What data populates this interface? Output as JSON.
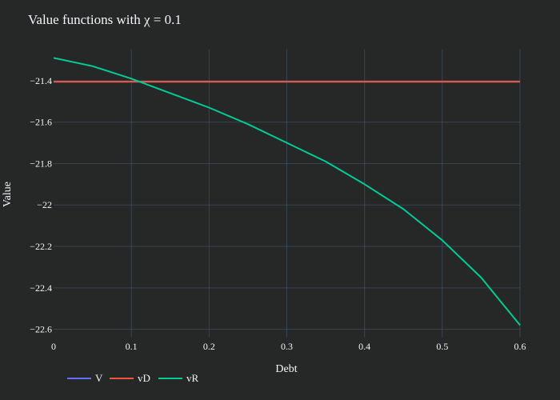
{
  "chart_data": {
    "type": "line",
    "title": "Value functions with χ = 0.1",
    "xlabel": "Debt",
    "ylabel": "Value",
    "xlim": [
      0,
      0.6
    ],
    "ylim": [
      -22.64,
      -21.25
    ],
    "x_ticks": [
      0,
      0.1,
      0.2,
      0.3,
      0.4,
      0.5,
      0.6
    ],
    "x_tick_labels": [
      "0",
      "0.1",
      "0.2",
      "0.3",
      "0.4",
      "0.5",
      "0.6"
    ],
    "y_ticks": [
      -21.4,
      -21.6,
      -21.8,
      -22,
      -22.2,
      -22.4,
      -22.6
    ],
    "y_tick_labels": [
      "−21.4",
      "−21.6",
      "−21.8",
      "−22",
      "−22.2",
      "−22.4",
      "−22.6"
    ],
    "grid": true,
    "legend_position": "bottom-left",
    "series": [
      {
        "name": "V",
        "color": "#636efa",
        "points": [
          [
            0,
            -21.405
          ],
          [
            0.1,
            -21.405
          ],
          [
            0.2,
            -21.405
          ],
          [
            0.3,
            -21.405
          ],
          [
            0.4,
            -21.405
          ],
          [
            0.5,
            -21.405
          ],
          [
            0.6,
            -21.405
          ]
        ]
      },
      {
        "name": "vD",
        "color": "#ef553b",
        "points": [
          [
            0,
            -21.405
          ],
          [
            0.1,
            -21.405
          ],
          [
            0.2,
            -21.405
          ],
          [
            0.3,
            -21.405
          ],
          [
            0.4,
            -21.405
          ],
          [
            0.5,
            -21.405
          ],
          [
            0.6,
            -21.405
          ]
        ]
      },
      {
        "name": "vR",
        "color": "#00cc96",
        "points": [
          [
            0,
            -21.29
          ],
          [
            0.05,
            -21.33
          ],
          [
            0.1,
            -21.39
          ],
          [
            0.15,
            -21.46
          ],
          [
            0.2,
            -21.53
          ],
          [
            0.25,
            -21.61
          ],
          [
            0.3,
            -21.7
          ],
          [
            0.35,
            -21.79
          ],
          [
            0.4,
            -21.9
          ],
          [
            0.45,
            -22.02
          ],
          [
            0.5,
            -22.17
          ],
          [
            0.55,
            -22.35
          ],
          [
            0.6,
            -22.58
          ]
        ]
      }
    ]
  }
}
